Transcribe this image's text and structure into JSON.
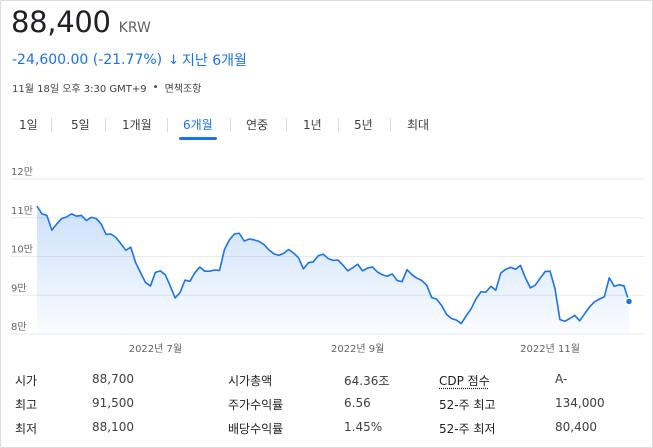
{
  "quote": {
    "price": "88,400",
    "currency": "KRW",
    "change": "-24,600.00 (-21.77%)",
    "arrow": "↓",
    "period": "지난 6개월",
    "timestamp": "11월 18일 오후 3:30 GMT+9",
    "disclaimer": "면책조항"
  },
  "tabs": [
    {
      "label": "1일",
      "active": false
    },
    {
      "label": "5일",
      "active": false
    },
    {
      "label": "1개월",
      "active": false
    },
    {
      "label": "6개월",
      "active": true
    },
    {
      "label": "연중",
      "active": false
    },
    {
      "label": "1년",
      "active": false
    },
    {
      "label": "5년",
      "active": false
    },
    {
      "label": "최대",
      "active": false
    }
  ],
  "chart_data": {
    "type": "area",
    "title": "",
    "xlabel": "",
    "ylabel": "",
    "ylim": [
      80000,
      120000
    ],
    "y_ticks": [
      {
        "value": 120000,
        "label": "12만"
      },
      {
        "value": 110000,
        "label": "11만"
      },
      {
        "value": 100000,
        "label": "10만"
      },
      {
        "value": 90000,
        "label": "9만"
      },
      {
        "value": 80000,
        "label": "8만"
      }
    ],
    "x_ticks": [
      {
        "index": 24,
        "label": "2022년 7월"
      },
      {
        "index": 65,
        "label": "2022년 9월"
      },
      {
        "index": 104,
        "label": "2022년 11월"
      }
    ],
    "line_color": "#1a73e8",
    "fill_color": "#e8f0fe",
    "values": [
      113000,
      111000,
      110600,
      106800,
      108400,
      109800,
      110200,
      111000,
      110400,
      110600,
      109300,
      110100,
      109800,
      108400,
      105700,
      105800,
      104900,
      103300,
      101600,
      102400,
      98400,
      95800,
      93300,
      92400,
      95900,
      96300,
      95300,
      92400,
      89300,
      90700,
      93900,
      93600,
      95800,
      97300,
      96200,
      96200,
      96500,
      96400,
      101800,
      104300,
      105800,
      106000,
      104000,
      104500,
      104300,
      103900,
      103100,
      101700,
      100700,
      100300,
      100800,
      101800,
      100900,
      99700,
      96800,
      98400,
      98600,
      100200,
      100600,
      99500,
      99000,
      99100,
      97800,
      96300,
      97100,
      98000,
      96300,
      97000,
      97300,
      96000,
      95300,
      94900,
      95500,
      93800,
      93500,
      96600,
      95300,
      94400,
      93800,
      92600,
      89400,
      89000,
      87400,
      85100,
      84000,
      83600,
      82700,
      84700,
      86500,
      89100,
      90900,
      90800,
      92300,
      91300,
      95700,
      96700,
      97200,
      96700,
      97700,
      94500,
      91900,
      92600,
      94400,
      96100,
      96200,
      91700,
      83700,
      83300,
      84000,
      84800,
      83400,
      85200,
      87000,
      88300,
      89000,
      89600,
      94500,
      92300,
      92700,
      92400,
      88400
    ],
    "last_point": 88400
  },
  "stats": [
    [
      {
        "label": "시가",
        "value": "88,700"
      },
      {
        "label": "최고",
        "value": "91,500"
      },
      {
        "label": "최저",
        "value": "88,100"
      }
    ],
    [
      {
        "label": "시가총액",
        "value": "64.36조"
      },
      {
        "label": "주가수익률",
        "value": "6.56"
      },
      {
        "label": "배당수익률",
        "value": "1.45%"
      }
    ],
    [
      {
        "label": "CDP 점수",
        "value": "A-"
      },
      {
        "label": "52-주 최고",
        "value": "134,000"
      },
      {
        "label": "52-주 최저",
        "value": "80,400"
      }
    ]
  ]
}
